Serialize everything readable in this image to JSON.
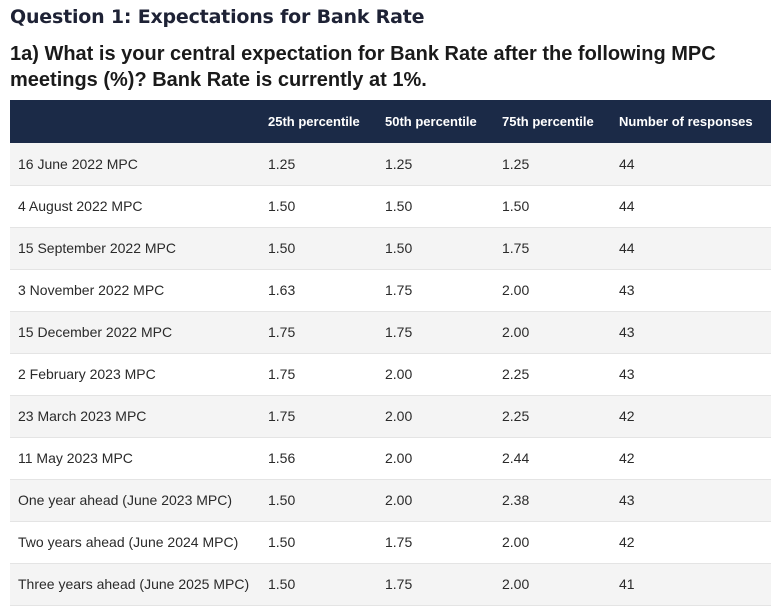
{
  "section_title": "Question 1: Expectations for Bank Rate",
  "question": "1a) What is your central expectation for Bank Rate after the following MPC meetings (%)? Bank Rate is currently at 1%.",
  "table": {
    "headers": [
      "",
      "25th percentile",
      "50th percentile",
      "75th percentile",
      "Number of responses"
    ],
    "rows": [
      [
        "16 June 2022 MPC",
        "1.25",
        "1.25",
        "1.25",
        "44"
      ],
      [
        "4 August 2022 MPC",
        "1.50",
        "1.50",
        "1.50",
        "44"
      ],
      [
        "15 September 2022 MPC",
        "1.50",
        "1.50",
        "1.75",
        "44"
      ],
      [
        "3 November 2022 MPC",
        "1.63",
        "1.75",
        "2.00",
        "43"
      ],
      [
        "15 December 2022 MPC",
        "1.75",
        "1.75",
        "2.00",
        "43"
      ],
      [
        "2 February 2023 MPC",
        "1.75",
        "2.00",
        "2.25",
        "43"
      ],
      [
        "23 March 2023 MPC",
        "1.75",
        "2.00",
        "2.25",
        "42"
      ],
      [
        "11 May 2023 MPC",
        "1.56",
        "2.00",
        "2.44",
        "42"
      ],
      [
        "One year ahead (June 2023 MPC)",
        "1.50",
        "2.00",
        "2.38",
        "43"
      ],
      [
        "Two years ahead (June 2024 MPC)",
        "1.50",
        "1.75",
        "2.00",
        "42"
      ],
      [
        "Three years ahead (June 2025 MPC)",
        "1.50",
        "1.75",
        "2.00",
        "41"
      ]
    ]
  },
  "colors": {
    "header_bg": "#1b2a47",
    "row_alt_bg": "#f4f4f4",
    "title_color": "#1e2235"
  }
}
